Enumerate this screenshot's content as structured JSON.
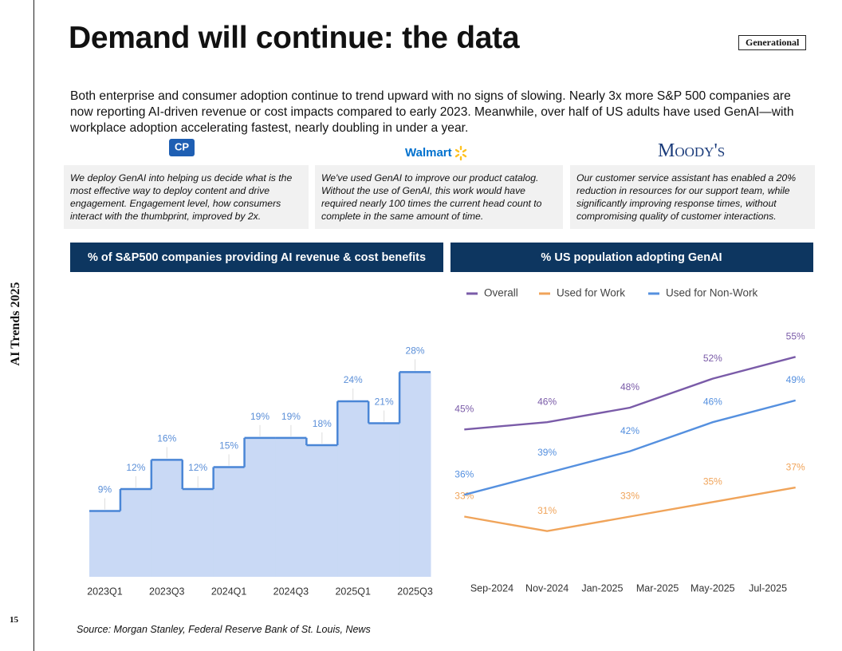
{
  "sidebar": {
    "label": "AI Trends 2025",
    "page_number": "15"
  },
  "header": {
    "title": "Demand will continue: the data",
    "tag": "Generational"
  },
  "intro": "Both enterprise and consumer adoption continue to trend upward with no signs of slowing. Nearly 3x more S&P 500 companies are now reporting AI-driven revenue or cost impacts compared to early 2023. Meanwhile, over half of US adults have used GenAI—with workplace adoption accelerating fastest, nearly doubling in under a year.",
  "quotes": [
    {
      "text": "We deploy GenAI into helping us decide what is the most effective way to deploy content and drive engagement. Engagement level, how consumers interact with the thumbprint, improved by 2x."
    },
    {
      "logo": "Walmart",
      "text": "We've used GenAI to improve our product catalog. Without the use of GenAI, this work would have required nearly 100 times the current head count to complete in the same amount of time."
    },
    {
      "logo": "Moody's",
      "text": "Our customer service assistant has enabled a 20% reduction in resources for our support team, while significantly improving response times, without compromising quality of customer interactions."
    }
  ],
  "chart_data": [
    {
      "type": "step",
      "title": "% of S&P500 companies providing AI revenue & cost benefits",
      "categories": [
        "2023Q1",
        null,
        "2023Q3",
        null,
        "2024Q1",
        null,
        "2024Q3",
        null,
        "2025Q1",
        null,
        "2025Q3"
      ],
      "values": [
        9,
        12,
        16,
        12,
        15,
        19,
        19,
        18,
        24,
        21,
        28
      ],
      "value_labels": [
        "9%",
        "12%",
        "16%",
        "12%",
        "15%",
        "19%",
        "19%",
        "18%",
        "24%",
        "21%",
        "28%"
      ],
      "color": "#4a86d6",
      "fill": "#c9d9f5",
      "ylim": [
        0,
        30
      ]
    },
    {
      "type": "line",
      "title": "% US population adopting GenAI",
      "x": [
        -1,
        2,
        5,
        8,
        11
      ],
      "xlim": [
        -1.5,
        11.5
      ],
      "xticks": [
        {
          "value": 0,
          "label": "Sep-2024"
        },
        {
          "value": 2,
          "label": "Nov-2024"
        },
        {
          "value": 4,
          "label": "Jan-2025"
        },
        {
          "value": 6,
          "label": "Mar-2025"
        },
        {
          "value": 8,
          "label": "May-2025"
        },
        {
          "value": 10,
          "label": "Jul-2025"
        }
      ],
      "ylim": [
        28,
        58
      ],
      "series": [
        {
          "name": "Overall",
          "color": "#7a5ba8",
          "values": [
            45,
            46,
            48,
            52,
            55
          ],
          "value_labels": [
            "45%",
            "46%",
            "48%",
            "52%",
            "55%"
          ]
        },
        {
          "name": "Used for Work",
          "color": "#f0a45a",
          "values": [
            33,
            31,
            33,
            35,
            37
          ],
          "value_labels": [
            "33%",
            "31%",
            "33%",
            "35%",
            "37%"
          ]
        },
        {
          "name": "Used for Non-Work",
          "color": "#5590df",
          "values": [
            36,
            39,
            42,
            46,
            49
          ],
          "value_labels": [
            "36%",
            "39%",
            "42%",
            "46%",
            "49%"
          ]
        }
      ]
    }
  ],
  "source": "Source: Morgan Stanley, Federal Reserve Bank of St. Louis, News"
}
